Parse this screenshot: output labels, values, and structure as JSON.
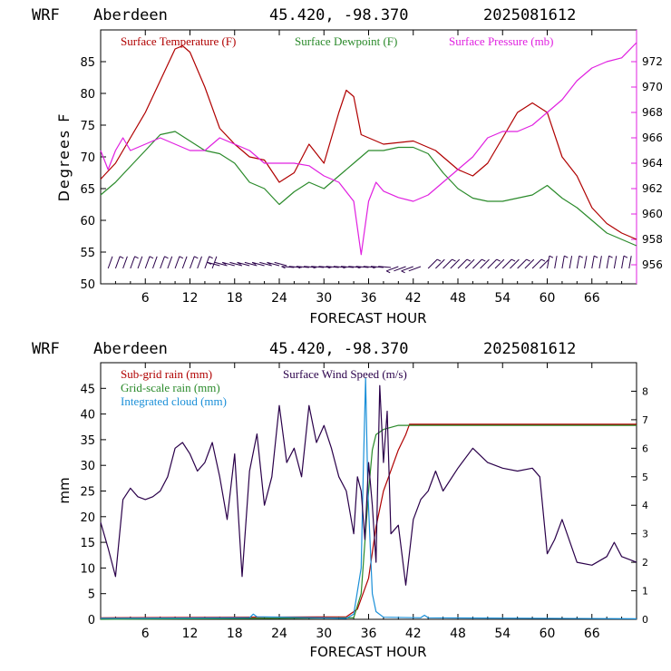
{
  "chart_data": [
    {
      "type": "line",
      "header": {
        "model": "WRF",
        "station": "Aberdeen",
        "coords": "45.420, -98.370",
        "run": "2025081612"
      },
      "xlabel": "FORECAST HOUR",
      "ylabel": "Degrees F",
      "xlim": [
        0,
        72
      ],
      "ylim": [
        50,
        90
      ],
      "y2lim": [
        954.5,
        974.5
      ],
      "x_ticks": [
        "6",
        "12",
        "18",
        "24",
        "30",
        "36",
        "42",
        "48",
        "54",
        "60",
        "66"
      ],
      "y_ticks": [
        "50",
        "55",
        "60",
        "65",
        "70",
        "75",
        "80",
        "85"
      ],
      "y2_ticks": [
        "956",
        "958",
        "960",
        "962",
        "964",
        "966",
        "968",
        "970",
        "972"
      ],
      "legend_position": "top",
      "series": [
        {
          "name": "Surface Temperature (F)",
          "color": "#b00000",
          "axis": "left",
          "points": [
            [
              0,
              66.5
            ],
            [
              2,
              69
            ],
            [
              4,
              73
            ],
            [
              6,
              77
            ],
            [
              8,
              82
            ],
            [
              10,
              87
            ],
            [
              11,
              87.5
            ],
            [
              12,
              86.5
            ],
            [
              14,
              81
            ],
            [
              16,
              74.5
            ],
            [
              18,
              72
            ],
            [
              20,
              70
            ],
            [
              22,
              69.5
            ],
            [
              24,
              66
            ],
            [
              26,
              67.5
            ],
            [
              28,
              72
            ],
            [
              30,
              69
            ],
            [
              32,
              77
            ],
            [
              33,
              80.5
            ],
            [
              34,
              79.5
            ],
            [
              35,
              73.5
            ],
            [
              38,
              72
            ],
            [
              42,
              72.5
            ],
            [
              45,
              71
            ],
            [
              48,
              68
            ],
            [
              50,
              67
            ],
            [
              52,
              69
            ],
            [
              54,
              73
            ],
            [
              56,
              77
            ],
            [
              58,
              78.5
            ],
            [
              60,
              77
            ],
            [
              62,
              70
            ],
            [
              64,
              67
            ],
            [
              66,
              62
            ],
            [
              68,
              59.5
            ],
            [
              70,
              58
            ],
            [
              72,
              57
            ]
          ]
        },
        {
          "name": "Surface Dewpoint (F)",
          "color": "#2a8a2a",
          "axis": "left",
          "points": [
            [
              0,
              64
            ],
            [
              2,
              66
            ],
            [
              4,
              68.5
            ],
            [
              6,
              71
            ],
            [
              8,
              73.5
            ],
            [
              10,
              74
            ],
            [
              12,
              72.5
            ],
            [
              14,
              71
            ],
            [
              16,
              70.5
            ],
            [
              18,
              69
            ],
            [
              20,
              66
            ],
            [
              22,
              65
            ],
            [
              24,
              62.5
            ],
            [
              26,
              64.5
            ],
            [
              28,
              66
            ],
            [
              30,
              65
            ],
            [
              32,
              67
            ],
            [
              34,
              69
            ],
            [
              36,
              71
            ],
            [
              38,
              71
            ],
            [
              40,
              71.5
            ],
            [
              42,
              71.5
            ],
            [
              44,
              70.5
            ],
            [
              46,
              67.5
            ],
            [
              48,
              65
            ],
            [
              50,
              63.5
            ],
            [
              52,
              63
            ],
            [
              54,
              63
            ],
            [
              56,
              63.5
            ],
            [
              58,
              64
            ],
            [
              60,
              65.5
            ],
            [
              62,
              63.5
            ],
            [
              64,
              62
            ],
            [
              66,
              60
            ],
            [
              68,
              58
            ],
            [
              70,
              57
            ],
            [
              72,
              56
            ]
          ]
        },
        {
          "name": "Surface Pressure (mb)",
          "color": "#e020e0",
          "axis": "right",
          "points": [
            [
              0,
              965
            ],
            [
              1,
              963.5
            ],
            [
              2,
              965
            ],
            [
              3,
              966
            ],
            [
              4,
              965
            ],
            [
              6,
              965.5
            ],
            [
              8,
              966
            ],
            [
              10,
              965.5
            ],
            [
              12,
              965
            ],
            [
              14,
              965
            ],
            [
              16,
              966
            ],
            [
              18,
              965.5
            ],
            [
              20,
              965
            ],
            [
              22,
              964
            ],
            [
              24,
              964
            ],
            [
              26,
              964
            ],
            [
              28,
              963.8
            ],
            [
              30,
              963
            ],
            [
              32,
              962.5
            ],
            [
              34,
              961
            ],
            [
              35,
              956.8
            ],
            [
              36,
              961
            ],
            [
              37,
              962.5
            ],
            [
              38,
              961.8
            ],
            [
              40,
              961.3
            ],
            [
              42,
              961
            ],
            [
              44,
              961.5
            ],
            [
              46,
              962.5
            ],
            [
              48,
              963.5
            ],
            [
              50,
              964.5
            ],
            [
              52,
              966
            ],
            [
              54,
              966.5
            ],
            [
              56,
              966.5
            ],
            [
              58,
              967
            ],
            [
              60,
              968
            ],
            [
              62,
              969
            ],
            [
              64,
              970.5
            ],
            [
              66,
              971.5
            ],
            [
              68,
              972
            ],
            [
              70,
              972.3
            ],
            [
              72,
              973.5
            ]
          ]
        }
      ],
      "wind_barbs_present": true
    },
    {
      "type": "line",
      "header": {
        "model": "WRF",
        "station": "Aberdeen",
        "coords": "45.420, -98.370",
        "run": "2025081612"
      },
      "xlabel": "FORECAST HOUR",
      "ylabel": "mm",
      "xlim": [
        0,
        72
      ],
      "ylim": [
        0,
        50
      ],
      "y2lim": [
        0,
        9
      ],
      "x_ticks": [
        "6",
        "12",
        "18",
        "24",
        "30",
        "36",
        "42",
        "48",
        "54",
        "60",
        "66"
      ],
      "y_ticks": [
        "0",
        "5",
        "10",
        "15",
        "20",
        "25",
        "30",
        "35",
        "40",
        "45"
      ],
      "y2_ticks": [
        "0",
        "1",
        "2",
        "3",
        "4",
        "5",
        "6",
        "7",
        "8"
      ],
      "legend_position": "top-left",
      "series": [
        {
          "name": "Sub-grid rain (mm)",
          "color": "#b00000",
          "axis": "left",
          "points": [
            [
              0,
              0.3
            ],
            [
              33,
              0.5
            ],
            [
              34.5,
              2
            ],
            [
              36,
              8
            ],
            [
              37,
              18
            ],
            [
              38,
              25
            ],
            [
              39,
              29
            ],
            [
              40,
              33
            ],
            [
              41,
              36
            ],
            [
              41.5,
              38
            ],
            [
              72,
              38
            ]
          ]
        },
        {
          "name": "Grid-scale rain (mm)",
          "color": "#2a8a2a",
          "axis": "left",
          "points": [
            [
              0,
              0
            ],
            [
              34,
              0.3
            ],
            [
              35,
              5
            ],
            [
              35.5,
              15
            ],
            [
              36,
              25
            ],
            [
              36.5,
              33
            ],
            [
              37,
              36
            ],
            [
              38,
              37
            ],
            [
              40,
              37.8
            ],
            [
              72,
              37.8
            ]
          ]
        },
        {
          "name": "Integrated cloud (mm)",
          "color": "#1a8fd8",
          "axis": "left",
          "points": [
            [
              0,
              0.2
            ],
            [
              20,
              0.3
            ],
            [
              20.5,
              1
            ],
            [
              21,
              0.5
            ],
            [
              33,
              0.2
            ],
            [
              34,
              1
            ],
            [
              35,
              10
            ],
            [
              35.3,
              30
            ],
            [
              35.6,
              47
            ],
            [
              35.9,
              25
            ],
            [
              36.5,
              5
            ],
            [
              37,
              1.5
            ],
            [
              38,
              0.4
            ],
            [
              43,
              0.3
            ],
            [
              43.5,
              0.8
            ],
            [
              44,
              0.3
            ],
            [
              72,
              0.1
            ]
          ]
        },
        {
          "name": "Surface Wind Speed (m/s)",
          "color": "#2a004a",
          "axis": "right",
          "points": [
            [
              0,
              3.4
            ],
            [
              1,
              2.5
            ],
            [
              2,
              1.5
            ],
            [
              3,
              4.2
            ],
            [
              4,
              4.6
            ],
            [
              5,
              4.3
            ],
            [
              6,
              4.2
            ],
            [
              7,
              4.3
            ],
            [
              8,
              4.5
            ],
            [
              9,
              5
            ],
            [
              10,
              6
            ],
            [
              11,
              6.2
            ],
            [
              12,
              5.8
            ],
            [
              13,
              5.2
            ],
            [
              14,
              5.5
            ],
            [
              15,
              6.2
            ],
            [
              16,
              5
            ],
            [
              17,
              3.5
            ],
            [
              18,
              5.8
            ],
            [
              19,
              1.5
            ],
            [
              20,
              5.2
            ],
            [
              21,
              6.5
            ],
            [
              22,
              4
            ],
            [
              23,
              5
            ],
            [
              24,
              7.5
            ],
            [
              25,
              5.5
            ],
            [
              26,
              6
            ],
            [
              27,
              5
            ],
            [
              28,
              7.5
            ],
            [
              29,
              6.2
            ],
            [
              30,
              6.8
            ],
            [
              31,
              6
            ],
            [
              32,
              5
            ],
            [
              33,
              4.5
            ],
            [
              34,
              3
            ],
            [
              34.5,
              5
            ],
            [
              35,
              4.5
            ],
            [
              35.5,
              2.8
            ],
            [
              36,
              5.5
            ],
            [
              36.5,
              4
            ],
            [
              37,
              2
            ],
            [
              37.5,
              8.2
            ],
            [
              38,
              5.5
            ],
            [
              38.5,
              7.3
            ],
            [
              39,
              3
            ],
            [
              40,
              3.3
            ],
            [
              41,
              1.2
            ],
            [
              42,
              3.5
            ],
            [
              43,
              4.2
            ],
            [
              44,
              4.5
            ],
            [
              45,
              5.2
            ],
            [
              46,
              4.5
            ],
            [
              48,
              5.3
            ],
            [
              50,
              6
            ],
            [
              52,
              5.5
            ],
            [
              54,
              5.3
            ],
            [
              56,
              5.2
            ],
            [
              58,
              5.3
            ],
            [
              59,
              5
            ],
            [
              60,
              2.3
            ],
            [
              61,
              2.8
            ],
            [
              62,
              3.5
            ],
            [
              64,
              2
            ],
            [
              66,
              1.9
            ],
            [
              68,
              2.2
            ],
            [
              69,
              2.7
            ],
            [
              70,
              2.2
            ],
            [
              72,
              2
            ]
          ]
        }
      ]
    }
  ]
}
